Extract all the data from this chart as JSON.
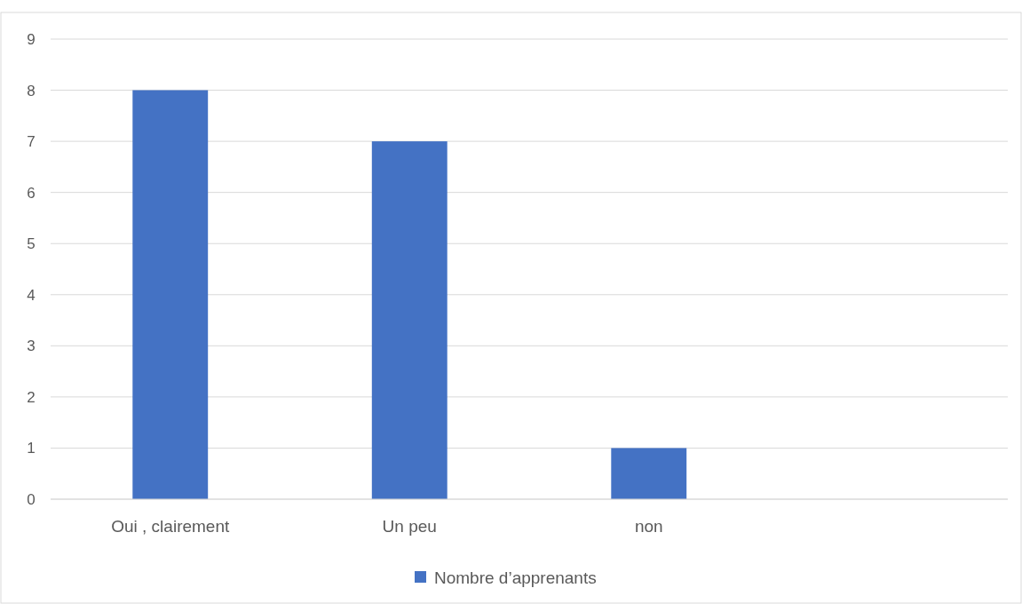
{
  "chart_data": {
    "type": "bar",
    "categories": [
      "Oui , clairement",
      "Un peu",
      "non",
      null
    ],
    "series": [
      {
        "name": "Nombre d’apprenants",
        "color": "#4472c4",
        "values": [
          8,
          7,
          1,
          null
        ]
      }
    ],
    "ylim": [
      0,
      9
    ],
    "yticks": [
      0,
      1,
      2,
      3,
      4,
      5,
      6,
      7,
      8,
      9
    ],
    "grid": "y",
    "legend": "bottom"
  }
}
